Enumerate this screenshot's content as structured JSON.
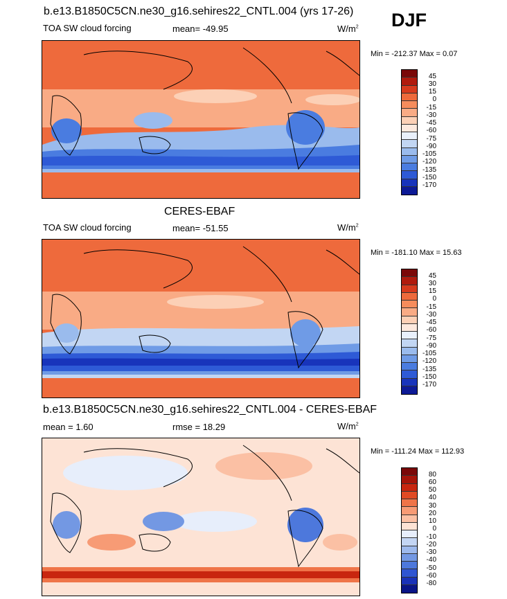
{
  "season": "DJF",
  "panels": [
    {
      "title": "b.e13.B1850C5CN.ne30_g16.sehires22_CNTL.004 (yrs 17-26)",
      "variable": "TOA SW cloud forcing",
      "stat1": "mean= -49.95",
      "stat2": "",
      "units": "W/m",
      "units_sup": "2",
      "minmax": "Min = -212.37 Max =   0.07",
      "colorbar_labels": [
        "45",
        "30",
        "15",
        "0",
        "-15",
        "-30",
        "-45",
        "-60",
        "-75",
        "-90",
        "-105",
        "-120",
        "-135",
        "-150",
        "-170"
      ],
      "colorbar_colors": [
        "#7a0808",
        "#b01a0d",
        "#d73a1d",
        "#ee6a3c",
        "#f68c5c",
        "#f9ab85",
        "#fcd0b6",
        "#fde9de",
        "#e9f0fb",
        "#c2d6f3",
        "#9abbed",
        "#6f9be6",
        "#4a7ce0",
        "#2e5ad6",
        "#1834bb",
        "#0d1a96"
      ]
    },
    {
      "title": "CERES-EBAF",
      "variable": "TOA SW cloud forcing",
      "stat1": "mean= -51.55",
      "stat2": "",
      "units": "W/m",
      "units_sup": "2",
      "minmax": "Min = -181.10 Max =  15.63",
      "colorbar_labels": [
        "45",
        "30",
        "15",
        "0",
        "-15",
        "-30",
        "-45",
        "-60",
        "-75",
        "-90",
        "-105",
        "-120",
        "-135",
        "-150",
        "-170"
      ],
      "colorbar_colors": [
        "#7a0808",
        "#b01a0d",
        "#d73a1d",
        "#ee6a3c",
        "#f68c5c",
        "#f9ab85",
        "#fcd0b6",
        "#fde9de",
        "#e9f0fb",
        "#c2d6f3",
        "#9abbed",
        "#6f9be6",
        "#4a7ce0",
        "#2e5ad6",
        "#1834bb",
        "#0d1a96"
      ]
    },
    {
      "title": "b.e13.B1850C5CN.ne30_g16.sehires22_CNTL.004 - CERES-EBAF",
      "variable": "",
      "stat1": "mean =   1.60",
      "stat2": "rmse =  18.29",
      "units": "W/m",
      "units_sup": "2",
      "minmax": "Min = -111.24 Max = 112.93",
      "colorbar_labels": [
        "80",
        "60",
        "50",
        "40",
        "30",
        "20",
        "10",
        "0",
        "-10",
        "-20",
        "-30",
        "-40",
        "-50",
        "-60",
        "-80"
      ],
      "colorbar_colors": [
        "#7a0808",
        "#a51409",
        "#c8260f",
        "#e04a24",
        "#ef7448",
        "#f79b75",
        "#fbc0a4",
        "#fde3d5",
        "#e7eefb",
        "#c3d5f3",
        "#9db9ec",
        "#7398e3",
        "#4d78dc",
        "#2f55d2",
        "#1a32b8",
        "#0a1587"
      ]
    }
  ]
}
